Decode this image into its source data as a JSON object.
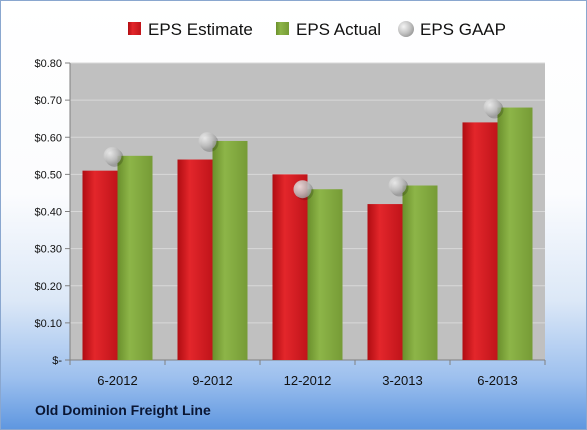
{
  "footer": {
    "company": "Old Dominion Freight Line"
  },
  "chart_data": {
    "type": "bar",
    "categories": [
      "6-2012",
      "9-2012",
      "12-2012",
      "3-2013",
      "6-2013"
    ],
    "series": [
      {
        "name": "EPS Estimate",
        "kind": "bar",
        "color": "#d0161b",
        "values": [
          0.51,
          0.54,
          0.5,
          0.42,
          0.64
        ]
      },
      {
        "name": "EPS Actual",
        "kind": "bar",
        "color": "#7fa33c",
        "values": [
          0.55,
          0.59,
          0.46,
          0.47,
          0.68
        ]
      },
      {
        "name": "EPS GAAP",
        "kind": "scatter",
        "color": "#c8c8c8",
        "values": [
          0.55,
          0.59,
          0.46,
          0.47,
          0.68
        ]
      }
    ],
    "yticks": [
      "$-",
      "$0.10",
      "$0.20",
      "$0.30",
      "$0.40",
      "$0.50",
      "$0.60",
      "$0.70",
      "$0.80"
    ],
    "ylim": [
      0,
      0.8
    ],
    "grid": true,
    "legend_position": "top",
    "plot_background": "#c0c0c0"
  }
}
